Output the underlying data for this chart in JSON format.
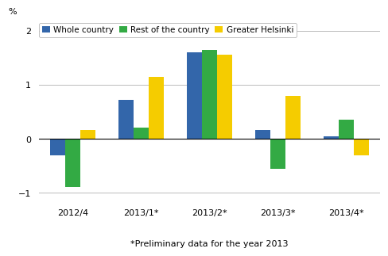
{
  "categories": [
    "2012/4",
    "2013/1*",
    "2013/2*",
    "2013/3*",
    "2013/4*"
  ],
  "series": [
    {
      "label": "Whole country",
      "color": "#3366aa",
      "values": [
        -0.3,
        0.72,
        1.6,
        0.17,
        0.05
      ]
    },
    {
      "label": "Rest of the country",
      "color": "#33aa44",
      "values": [
        -0.9,
        0.2,
        1.65,
        -0.55,
        0.35
      ]
    },
    {
      "label": "Greater Helsinki",
      "color": "#f5cc00",
      "values": [
        0.17,
        1.15,
        1.55,
        0.8,
        -0.3
      ]
    }
  ],
  "ylim": [
    -1.15,
    2.15
  ],
  "yticks": [
    -1,
    0,
    1,
    2
  ],
  "ylabel": "%",
  "footnote": "*Preliminary data for the year 2013",
  "background_color": "#ffffff",
  "grid_color": "#bbbbbb",
  "bar_width": 0.22,
  "legend_fontsize": 7.5,
  "tick_fontsize": 8,
  "footnote_fontsize": 8
}
